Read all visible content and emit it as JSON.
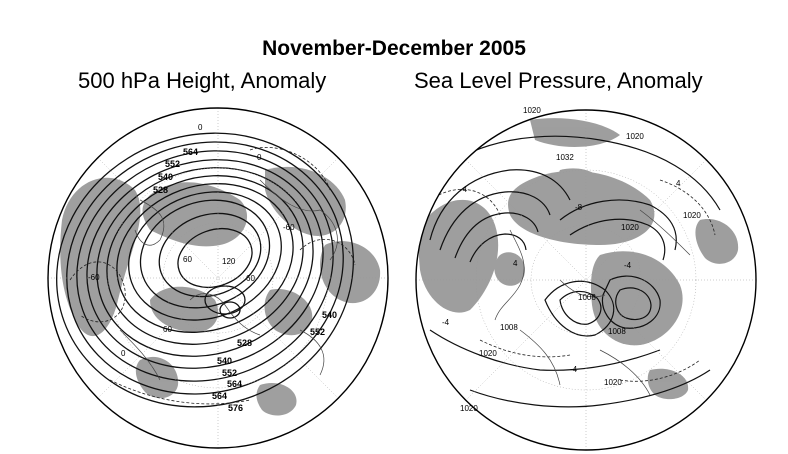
{
  "header": {
    "title": "November-December 2005",
    "left_subtitle": "500 hPa Height, Anomaly",
    "right_subtitle": "Sea Level Pressure, Anomaly"
  },
  "left_map": {
    "contour_labels": [
      "564",
      "552",
      "540",
      "528",
      "564",
      "552",
      "540",
      "528",
      "552",
      "540",
      "564",
      "576"
    ],
    "anomaly_labels": [
      "0",
      "-60",
      "60",
      "120",
      "60",
      "-60",
      "60",
      "0",
      "0"
    ]
  },
  "right_map": {
    "contour_labels": [
      "1020",
      "1020",
      "1032",
      "1020",
      "1020",
      "1008",
      "1008",
      "1020",
      "1020",
      "1020",
      "1008"
    ],
    "anomaly_labels": [
      "-4",
      "4",
      "-8",
      "-4",
      "4",
      "-4",
      "-4"
    ]
  },
  "colors": {
    "shading": "#8c8c8c",
    "contour": "#111111",
    "background": "#ffffff"
  }
}
